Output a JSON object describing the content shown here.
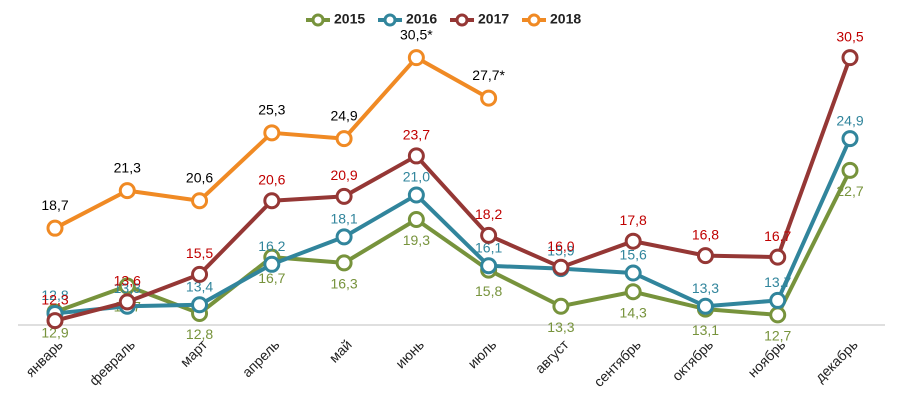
{
  "chart_data": {
    "type": "line",
    "categories": [
      "январь",
      "февраль",
      "март",
      "апрель",
      "май",
      "июнь",
      "июль",
      "август",
      "сентябрь",
      "октябрь",
      "ноябрь",
      "декабрь"
    ],
    "ylim": [
      12,
      32
    ],
    "series": [
      {
        "name": "2015",
        "color": "#77933c",
        "label_color": "#77933c",
        "values": [
          12.9,
          14.7,
          12.8,
          16.7,
          16.3,
          19.3,
          15.8,
          13.3,
          14.3,
          13.1,
          12.7,
          22.7
        ],
        "value_labels": [
          "12,9",
          "14,7",
          "12,8",
          "16,7",
          "16,3",
          "19,3",
          "15,8",
          "13,3",
          "14,3",
          "13,1",
          "12,7",
          "22,7"
        ]
      },
      {
        "name": "2016",
        "color": "#31859c",
        "label_color": "#31859c",
        "values": [
          12.8,
          13.3,
          13.4,
          16.2,
          18.1,
          21.0,
          16.1,
          15.9,
          15.6,
          13.3,
          13.7,
          24.9
        ],
        "value_labels": [
          "12,8",
          "13,3",
          "13,4",
          "16,2",
          "18,1",
          "21,0",
          "16,1",
          "15,9",
          "15,6",
          "13,3",
          "13,7",
          "24,9"
        ]
      },
      {
        "name": "2017",
        "color": "#953735",
        "label_color": "#c00000",
        "values": [
          12.3,
          13.6,
          15.5,
          20.6,
          20.9,
          23.7,
          18.2,
          16.0,
          17.8,
          16.8,
          16.7,
          30.5
        ],
        "value_labels": [
          "12,3",
          "13,6",
          "15,5",
          "20,6",
          "20,9",
          "23,7",
          "18,2",
          "16,0",
          "17,8",
          "16,8",
          "16,7",
          "30,5"
        ]
      },
      {
        "name": "2018",
        "color": "#f08a24",
        "label_color": "#000000",
        "values": [
          18.7,
          21.3,
          20.6,
          25.3,
          24.9,
          30.5,
          27.7,
          null,
          null,
          null,
          null,
          null
        ],
        "value_labels": [
          "18,7",
          "21,3",
          "20,6",
          "25,3",
          "24,9",
          "30,5*",
          "27,7*",
          null,
          null,
          null,
          null,
          null
        ]
      }
    ]
  }
}
